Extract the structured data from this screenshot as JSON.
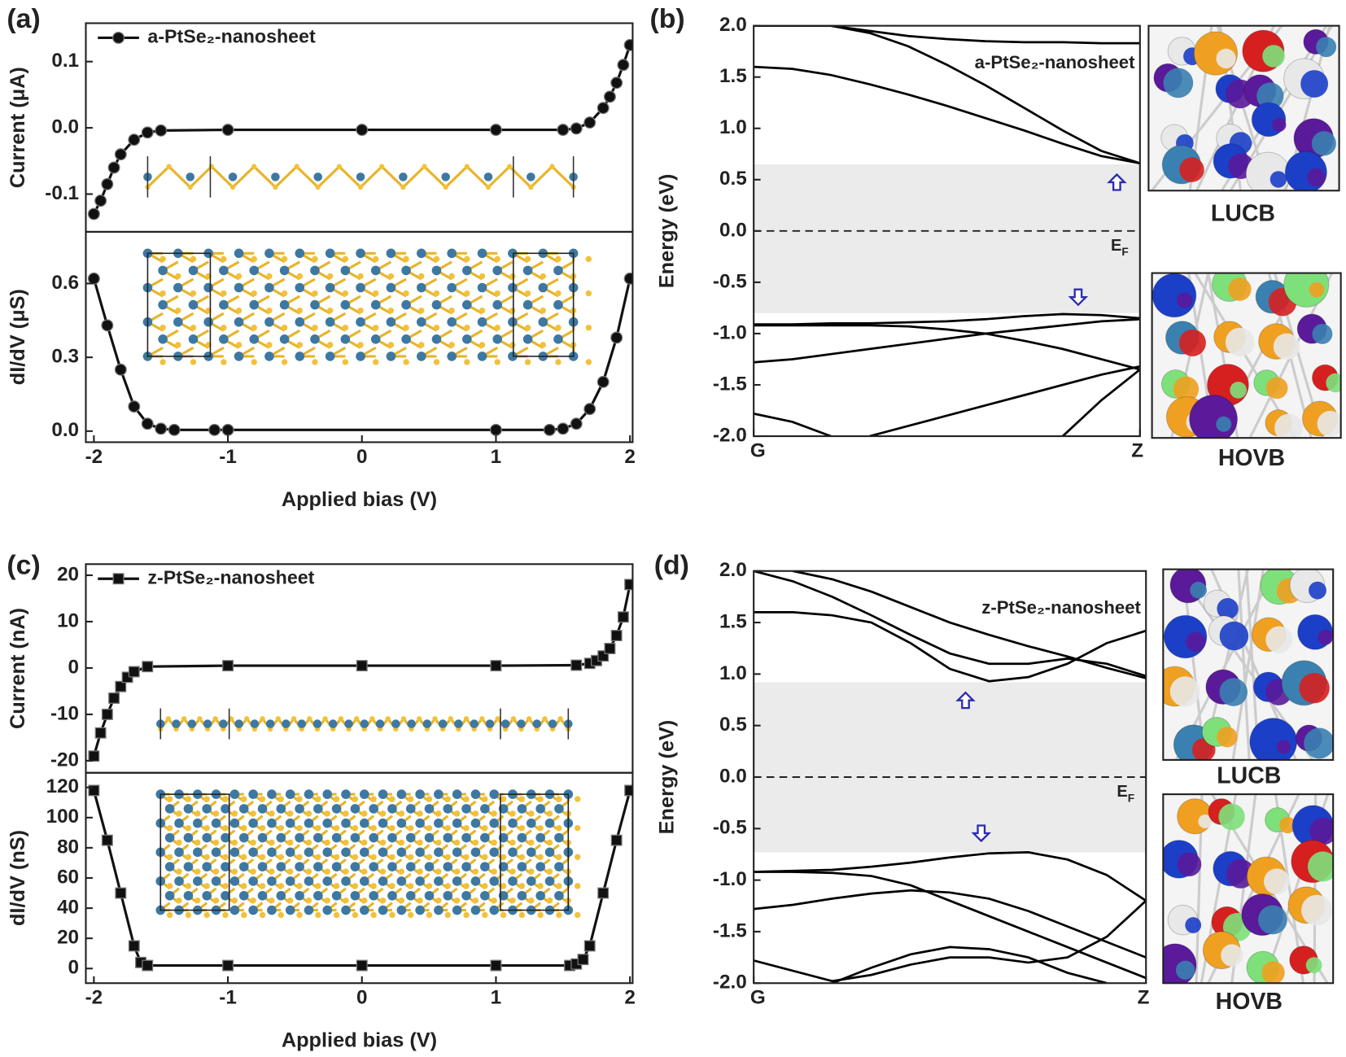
{
  "chart_data": [
    {
      "type": "line",
      "panel_label": "(a)",
      "ylabel": "Current (μA)",
      "legend": "upper left",
      "x": [
        -2,
        -1.95,
        -1.9,
        -1.85,
        -1.8,
        -1.7,
        -1.6,
        -1.5,
        -1,
        0,
        1,
        1.5,
        1.6,
        1.7,
        1.8,
        1.85,
        1.9,
        1.95,
        2
      ],
      "series": [
        {
          "name": "a-PtSe₂-nanosheet",
          "color": "#111111",
          "marker": "circle",
          "values": [
            -0.13,
            -0.11,
            -0.085,
            -0.06,
            -0.04,
            -0.018,
            -0.007,
            -0.004,
            -0.003,
            -0.003,
            -0.003,
            -0.003,
            -0.001,
            0.008,
            0.03,
            0.047,
            0.068,
            0.095,
            0.125
          ]
        }
      ],
      "xlim": [
        -2.06,
        2.02
      ],
      "ylim": [
        -0.157,
        0.158
      ],
      "yticks": [
        -0.1,
        {
          "value": 0,
          "label": "0.0"
        },
        0.1
      ]
    },
    {
      "type": "line",
      "ylabel": "dI/dV (μS)",
      "xlabel": "Applied bias (V)",
      "x": [
        -2,
        -1.9,
        -1.8,
        -1.7,
        -1.6,
        -1.5,
        -1.4,
        -1.1,
        -1,
        1,
        1.4,
        1.5,
        1.6,
        1.7,
        1.8,
        1.9,
        2
      ],
      "series": [
        {
          "color": "#111111",
          "marker": "circle",
          "values": [
            0.62,
            0.43,
            0.25,
            0.1,
            0.03,
            0.01,
            0.005,
            0.005,
            0.005,
            0.005,
            0.005,
            0.01,
            0.03,
            0.09,
            0.2,
            0.38,
            0.62
          ]
        }
      ],
      "xlim": [
        -2.06,
        2.02
      ],
      "ylim": [
        -0.045,
        0.81
      ],
      "xticks": [
        -2,
        -1,
        0,
        1,
        2
      ],
      "yticks": [
        {
          "value": 0,
          "label": "0.0"
        },
        0.3,
        0.6
      ]
    },
    {
      "type": "band",
      "panel_label": "(b)",
      "ylabel": "Energy (eV)",
      "annotation": "a-PtSe₂-nanosheet",
      "line_color": "#000000",
      "gap_color": "#ebebeb",
      "arrow_color": "#2b2bb0",
      "x": [
        0,
        0.1,
        0.2,
        0.3,
        0.4,
        0.5,
        0.6,
        0.7,
        0.8,
        0.9,
        1
      ],
      "series": [
        {
          "values": [
            1.6,
            1.58,
            1.52,
            1.43,
            1.33,
            1.22,
            1.1,
            0.98,
            0.85,
            0.73,
            0.66
          ]
        },
        {
          "values": [
            2.0,
            2.0,
            2.0,
            1.93,
            1.8,
            1.62,
            1.42,
            1.2,
            0.98,
            0.78,
            0.66
          ]
        },
        {
          "values": [
            null,
            null,
            2.0,
            1.95,
            1.9,
            1.87,
            1.85,
            1.84,
            1.84,
            1.83,
            1.83
          ]
        },
        {
          "values": [
            -0.91,
            -0.91,
            -0.9,
            -0.9,
            -0.89,
            -0.88,
            -0.86,
            -0.83,
            -0.81,
            -0.82,
            -0.85
          ]
        },
        {
          "values": [
            -0.92,
            -0.92,
            -0.92,
            -0.92,
            -0.93,
            -0.96,
            -1.0,
            -1.07,
            -1.15,
            -1.25,
            -1.35
          ]
        },
        {
          "values": [
            -1.28,
            -1.25,
            -1.2,
            -1.15,
            -1.1,
            -1.05,
            -1.0,
            -0.96,
            -0.92,
            -0.88,
            -0.86
          ]
        },
        {
          "values": [
            null,
            null,
            null,
            -2.0,
            -1.9,
            -1.8,
            -1.7,
            -1.6,
            -1.5,
            -1.4,
            -1.32
          ]
        },
        {
          "values": [
            -1.78,
            -1.86,
            -2.0,
            null,
            null,
            null,
            null,
            null,
            null,
            null,
            null
          ]
        },
        {
          "values": [
            null,
            null,
            null,
            null,
            null,
            null,
            null,
            null,
            -2.0,
            -1.65,
            -1.35
          ]
        }
      ],
      "gap": [
        -0.8,
        0.65
      ],
      "fermi_level": 0,
      "fermi_label": "E",
      "fermi_label_sub": "F",
      "arrows": [
        {
          "x": 0.94,
          "y": 0.55,
          "direction": "up"
        },
        {
          "x": 0.84,
          "y": -0.72,
          "direction": "down"
        }
      ],
      "xlim": [
        0,
        1
      ],
      "ylim": [
        -2,
        2
      ],
      "xticks": [
        {
          "value": 0,
          "label": "G"
        },
        {
          "value": 1,
          "label": "Z"
        }
      ],
      "yticks": [
        {
          "value": -2,
          "label": "-2.0"
        },
        -1.5,
        {
          "value": -1,
          "label": "-1.0"
        },
        -0.5,
        {
          "value": 0,
          "label": "0.0"
        },
        0.5,
        {
          "value": 1,
          "label": "1.0"
        },
        1.5,
        {
          "value": 2,
          "label": "2.0"
        }
      ],
      "images": [
        {
          "label": "LUCB"
        },
        {
          "label": "HOVB"
        }
      ]
    },
    {
      "type": "line",
      "panel_label": "(c)",
      "ylabel": "Current (nA)",
      "legend": "upper left",
      "x": [
        -2,
        -1.95,
        -1.9,
        -1.85,
        -1.8,
        -1.75,
        -1.7,
        -1.6,
        -1,
        0,
        1,
        1.6,
        1.7,
        1.75,
        1.8,
        1.85,
        1.9,
        1.95,
        2
      ],
      "series": [
        {
          "name": "z-PtSe₂-nanosheet",
          "color": "#111111",
          "marker": "square",
          "values": [
            -19,
            -14,
            -10,
            -6.5,
            -4,
            -2,
            -0.8,
            0.3,
            0.5,
            0.5,
            0.5,
            0.6,
            1,
            1.6,
            2.6,
            4.2,
            7,
            11,
            18
          ]
        }
      ],
      "xlim": [
        -2.06,
        2.02
      ],
      "ylim": [
        -22.6,
        22.4
      ],
      "yticks": [
        -20,
        -10,
        0,
        10,
        20
      ]
    },
    {
      "type": "line",
      "ylabel": "dI/dV (nS)",
      "xlabel": "Applied bias (V)",
      "x": [
        -2,
        -1.9,
        -1.8,
        -1.7,
        -1.65,
        -1.6,
        -1,
        0,
        1,
        1.55,
        1.6,
        1.65,
        1.7,
        1.8,
        1.9,
        2
      ],
      "series": [
        {
          "color": "#111111",
          "marker": "square",
          "values": [
            118,
            85,
            50,
            15,
            4,
            2,
            2,
            2,
            2,
            2,
            3,
            6,
            15,
            50,
            85,
            118
          ]
        }
      ],
      "xlim": [
        -2.06,
        2.02
      ],
      "ylim": [
        -9.7,
        129.7
      ],
      "xticks": [
        -2,
        -1,
        0,
        1,
        2
      ],
      "yticks": [
        0,
        20,
        40,
        60,
        80,
        100,
        120
      ]
    },
    {
      "type": "band",
      "panel_label": "(d)",
      "ylabel": "Energy (eV)",
      "annotation": "z-PtSe₂-nanosheet",
      "line_color": "#000000",
      "gap_color": "#ebebeb",
      "arrow_color": "#2b2bb0",
      "x": [
        0,
        0.1,
        0.2,
        0.3,
        0.4,
        0.5,
        0.6,
        0.7,
        0.8,
        0.9,
        1
      ],
      "series": [
        {
          "values": [
            1.6,
            1.6,
            1.57,
            1.5,
            1.3,
            1.05,
            0.93,
            0.97,
            1.1,
            1.3,
            1.42
          ]
        },
        {
          "values": [
            2.0,
            1.9,
            1.75,
            1.57,
            1.38,
            1.2,
            1.1,
            1.1,
            1.15,
            1.1,
            0.98
          ]
        },
        {
          "values": [
            null,
            2.0,
            1.92,
            1.8,
            1.65,
            1.5,
            1.38,
            1.27,
            1.17,
            1.06,
            0.96
          ]
        },
        {
          "values": [
            -0.92,
            -0.91,
            -0.9,
            -0.87,
            -0.83,
            -0.78,
            -0.74,
            -0.73,
            -0.8,
            -0.95,
            -1.2
          ]
        },
        {
          "values": [
            -0.92,
            -0.92,
            -0.93,
            -0.96,
            -1.05,
            -1.2,
            -1.35,
            -1.5,
            -1.65,
            -1.8,
            -1.95
          ]
        },
        {
          "values": [
            -1.28,
            -1.24,
            -1.18,
            -1.13,
            -1.1,
            -1.12,
            -1.18,
            -1.3,
            -1.45,
            -1.6,
            -1.75
          ]
        },
        {
          "values": [
            -1.78,
            -1.88,
            -1.98,
            -1.92,
            -1.82,
            -1.75,
            -1.75,
            -1.8,
            -1.75,
            -1.55,
            -1.2
          ]
        },
        {
          "values": [
            null,
            null,
            -2.0,
            -1.85,
            -1.72,
            -1.65,
            -1.67,
            -1.75,
            -1.9,
            -2.0,
            null
          ]
        }
      ],
      "gap": [
        -0.73,
        0.92
      ],
      "fermi_level": 0,
      "fermi_label": "E",
      "fermi_label_sub": "F",
      "arrows": [
        {
          "x": 0.54,
          "y": 0.82,
          "direction": "up"
        },
        {
          "x": 0.58,
          "y": -0.62,
          "direction": "down"
        }
      ],
      "xlim": [
        0,
        1
      ],
      "ylim": [
        -2,
        2
      ],
      "xticks": [
        {
          "value": 0,
          "label": "G"
        },
        {
          "value": 1,
          "label": "Z"
        }
      ],
      "yticks": [
        {
          "value": -2,
          "label": "-2.0"
        },
        -1.5,
        {
          "value": -1,
          "label": "-1.0"
        },
        -0.5,
        {
          "value": 0,
          "label": "0.0"
        },
        0.5,
        {
          "value": 1,
          "label": "1.0"
        },
        1.5,
        {
          "value": 2,
          "label": "2.0"
        }
      ],
      "images": [
        {
          "label": "LUCB"
        },
        {
          "label": "HOVB"
        }
      ]
    }
  ]
}
